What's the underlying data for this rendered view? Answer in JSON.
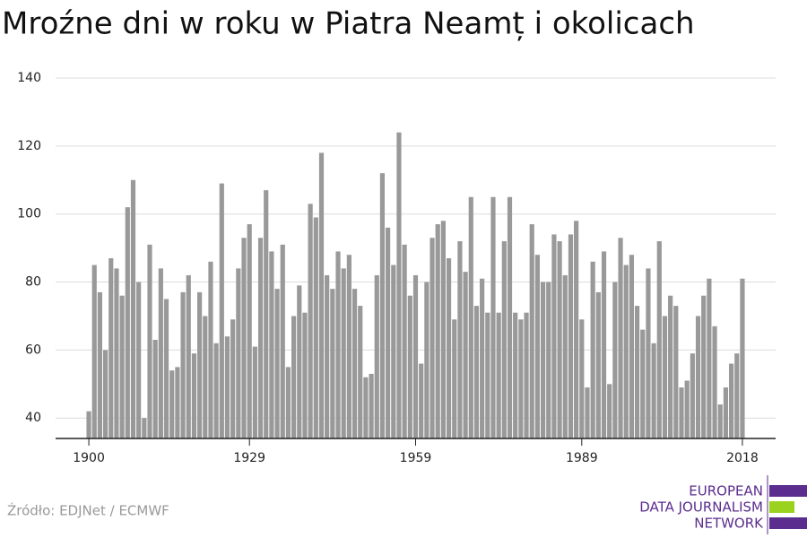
{
  "chart_data": {
    "type": "bar",
    "title": "Mroźne dni w roku w Piatra Neamț i okolicach",
    "source": "Źródło: EDJNet / ECMWF",
    "logo": [
      "EUROPEAN",
      "DATA JOURNALISM",
      "NETWORK"
    ],
    "color": "#999999",
    "grid": true,
    "xlim": [
      1894,
      2024
    ],
    "xticks": [
      1900,
      1929,
      1959,
      1989,
      2018
    ],
    "ylim": [
      34,
      140
    ],
    "yticks": [
      40,
      60,
      80,
      100,
      120,
      140
    ],
    "x": [
      1900,
      1901,
      1902,
      1903,
      1904,
      1905,
      1906,
      1907,
      1908,
      1909,
      1910,
      1911,
      1912,
      1913,
      1914,
      1915,
      1916,
      1917,
      1918,
      1919,
      1920,
      1921,
      1922,
      1923,
      1924,
      1925,
      1926,
      1927,
      1928,
      1929,
      1930,
      1931,
      1932,
      1933,
      1934,
      1935,
      1936,
      1937,
      1938,
      1939,
      1940,
      1941,
      1942,
      1943,
      1944,
      1945,
      1946,
      1947,
      1948,
      1949,
      1950,
      1951,
      1952,
      1953,
      1954,
      1955,
      1956,
      1957,
      1958,
      1959,
      1960,
      1961,
      1962,
      1963,
      1964,
      1965,
      1966,
      1967,
      1968,
      1969,
      1970,
      1971,
      1972,
      1973,
      1974,
      1975,
      1976,
      1977,
      1978,
      1979,
      1980,
      1981,
      1982,
      1983,
      1984,
      1985,
      1986,
      1987,
      1988,
      1989,
      1990,
      1991,
      1992,
      1993,
      1994,
      1995,
      1996,
      1997,
      1998,
      1999,
      2000,
      2001,
      2002,
      2003,
      2004,
      2005,
      2006,
      2007,
      2008,
      2009,
      2010,
      2011,
      2012,
      2013,
      2014,
      2015,
      2016,
      2017,
      2018
    ],
    "values": [
      42,
      85,
      77,
      60,
      87,
      84,
      76,
      102,
      110,
      80,
      40,
      91,
      63,
      84,
      75,
      54,
      55,
      77,
      82,
      59,
      77,
      70,
      86,
      62,
      109,
      64,
      69,
      84,
      93,
      97,
      61,
      93,
      107,
      89,
      78,
      91,
      55,
      70,
      79,
      71,
      103,
      99,
      118,
      82,
      78,
      89,
      84,
      88,
      78,
      73,
      52,
      53,
      82,
      112,
      96,
      85,
      124,
      91,
      76,
      82,
      56,
      80,
      93,
      97,
      98,
      87,
      69,
      92,
      83,
      105,
      73,
      81,
      71,
      105,
      71,
      92,
      105,
      71,
      69,
      71,
      97,
      88,
      80,
      80,
      94,
      92,
      82,
      94,
      98,
      69,
      49,
      86,
      77,
      89,
      50,
      80,
      93,
      85,
      88,
      73,
      66,
      84,
      62,
      92,
      70,
      76,
      73,
      49,
      51,
      59,
      70,
      76,
      81,
      67,
      44,
      49,
      56,
      59,
      81
    ]
  }
}
